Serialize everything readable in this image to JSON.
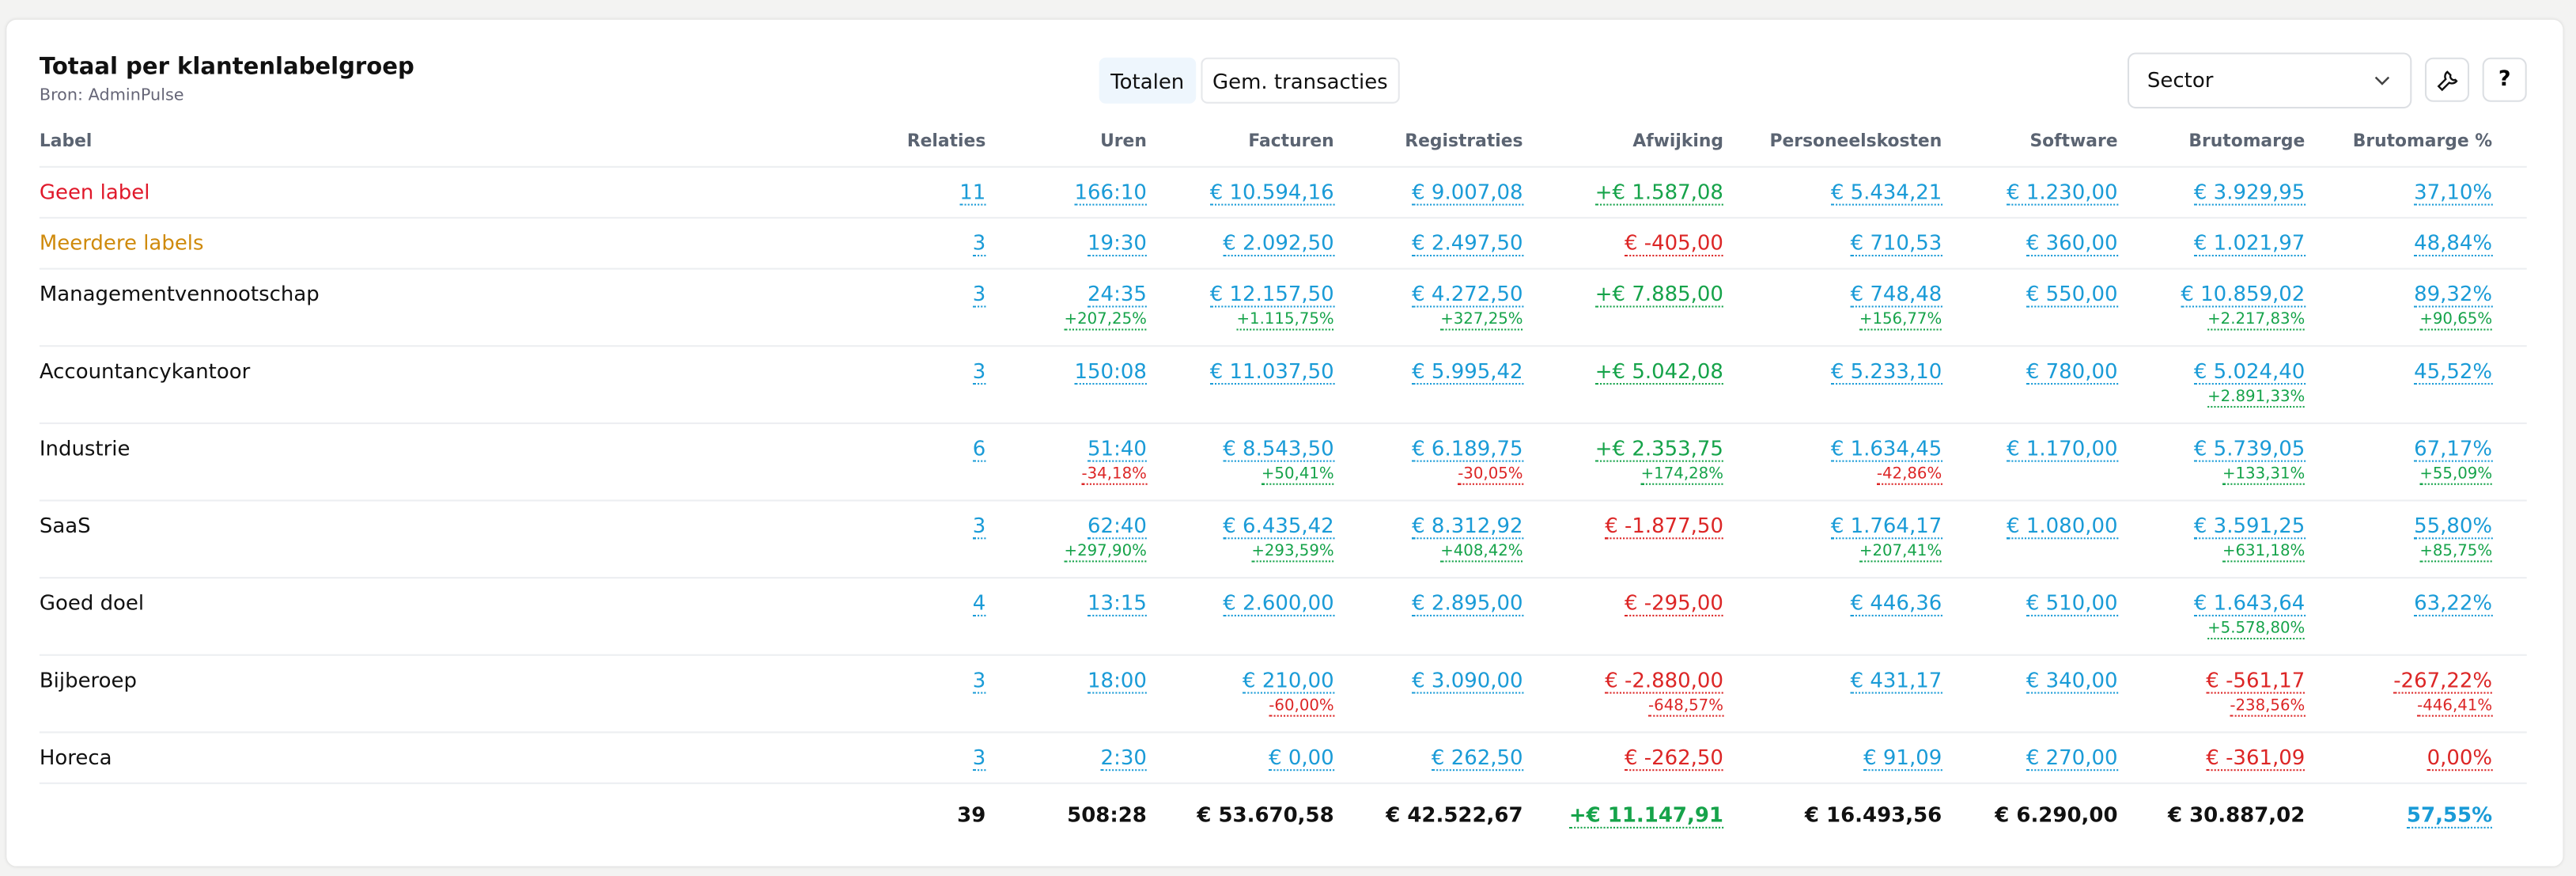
{
  "header": {
    "title": "Totaal per klantenlabelgroep",
    "source": "Bron: AdminPulse"
  },
  "tabs": {
    "items": [
      "Totalen",
      "Gem. transacties"
    ],
    "active": 0
  },
  "select": {
    "value": "Sector"
  },
  "help": "?",
  "table": {
    "columns": [
      "Label",
      "Relaties",
      "Uren",
      "Facturen",
      "Registraties",
      "Afwijking",
      "Personeelskosten",
      "Software",
      "Brutomarge",
      "Brutomarge %"
    ],
    "rows": [
      {
        "label": "Geen label",
        "color": "red",
        "cells": [
          {
            "v": "11"
          },
          {
            "v": "166:10"
          },
          {
            "v": "€ 10.594,16"
          },
          {
            "v": "€ 9.007,08"
          },
          {
            "v": "+€ 1.587,08"
          },
          {
            "v": "€ 5.434,21"
          },
          {
            "v": "€ 1.230,00"
          },
          {
            "v": "€ 3.929,95"
          },
          {
            "v": "37,10%"
          }
        ]
      },
      {
        "label": "Meerdere labels",
        "color": "orange",
        "cells": [
          {
            "v": "3"
          },
          {
            "v": "19:30"
          },
          {
            "v": "€ 2.092,50"
          },
          {
            "v": "€ 2.497,50"
          },
          {
            "v": "€ -405,00"
          },
          {
            "v": "€ 710,53"
          },
          {
            "v": "€ 360,00"
          },
          {
            "v": "€ 1.021,97"
          },
          {
            "v": "48,84%"
          }
        ]
      },
      {
        "label": "Managementvennootschap",
        "cells": [
          {
            "v": "3"
          },
          {
            "v": "24:35",
            "d": "+207,25%"
          },
          {
            "v": "€ 12.157,50",
            "d": "+1.115,75%"
          },
          {
            "v": "€ 4.272,50",
            "d": "+327,25%"
          },
          {
            "v": "+€ 7.885,00"
          },
          {
            "v": "€ 748,48",
            "d": "+156,77%"
          },
          {
            "v": "€ 550,00"
          },
          {
            "v": "€ 10.859,02",
            "d": "+2.217,83%"
          },
          {
            "v": "89,32%",
            "d": "+90,65%"
          }
        ]
      },
      {
        "label": "Accountancykantoor",
        "cells": [
          {
            "v": "3"
          },
          {
            "v": "150:08"
          },
          {
            "v": "€ 11.037,50"
          },
          {
            "v": "€ 5.995,42"
          },
          {
            "v": "+€ 5.042,08"
          },
          {
            "v": "€ 5.233,10"
          },
          {
            "v": "€ 780,00"
          },
          {
            "v": "€ 5.024,40",
            "d": "+2.891,33%"
          },
          {
            "v": "45,52%"
          }
        ]
      },
      {
        "label": "Industrie",
        "cells": [
          {
            "v": "6"
          },
          {
            "v": "51:40",
            "d": "-34,18%"
          },
          {
            "v": "€ 8.543,50",
            "d": "+50,41%"
          },
          {
            "v": "€ 6.189,75",
            "d": "-30,05%"
          },
          {
            "v": "+€ 2.353,75",
            "d": "+174,28%"
          },
          {
            "v": "€ 1.634,45",
            "d": "-42,86%"
          },
          {
            "v": "€ 1.170,00"
          },
          {
            "v": "€ 5.739,05",
            "d": "+133,31%"
          },
          {
            "v": "67,17%",
            "d": "+55,09%"
          }
        ]
      },
      {
        "label": "SaaS",
        "cells": [
          {
            "v": "3"
          },
          {
            "v": "62:40",
            "d": "+297,90%"
          },
          {
            "v": "€ 6.435,42",
            "d": "+293,59%"
          },
          {
            "v": "€ 8.312,92",
            "d": "+408,42%"
          },
          {
            "v": "€ -1.877,50"
          },
          {
            "v": "€ 1.764,17",
            "d": "+207,41%"
          },
          {
            "v": "€ 1.080,00"
          },
          {
            "v": "€ 3.591,25",
            "d": "+631,18%"
          },
          {
            "v": "55,80%",
            "d": "+85,75%"
          }
        ]
      },
      {
        "label": "Goed doel",
        "cells": [
          {
            "v": "4"
          },
          {
            "v": "13:15"
          },
          {
            "v": "€ 2.600,00"
          },
          {
            "v": "€ 2.895,00"
          },
          {
            "v": "€ -295,00"
          },
          {
            "v": "€ 446,36"
          },
          {
            "v": "€ 510,00"
          },
          {
            "v": "€ 1.643,64",
            "d": "+5.578,80%"
          },
          {
            "v": "63,22%"
          }
        ]
      },
      {
        "label": "Bijberoep",
        "cells": [
          {
            "v": "3"
          },
          {
            "v": "18:00"
          },
          {
            "v": "€ 210,00",
            "d": "-60,00%"
          },
          {
            "v": "€ 3.090,00"
          },
          {
            "v": "€ -2.880,00",
            "d": "-648,57%"
          },
          {
            "v": "€ 431,17"
          },
          {
            "v": "€ 340,00"
          },
          {
            "v": "€ -561,17",
            "d": "-238,56%"
          },
          {
            "v": "-267,22%",
            "d": "-446,41%"
          }
        ]
      },
      {
        "label": "Horeca",
        "cells": [
          {
            "v": "3"
          },
          {
            "v": "2:30"
          },
          {
            "v": "€ 0,00"
          },
          {
            "v": "€ 262,50"
          },
          {
            "v": "€ -262,50"
          },
          {
            "v": "€ 91,09"
          },
          {
            "v": "€ 270,00"
          },
          {
            "v": "€ -361,09"
          },
          {
            "v": "0,00%",
            "color": "red"
          }
        ]
      }
    ],
    "totals": {
      "cells": [
        {
          "v": "39"
        },
        {
          "v": "508:28"
        },
        {
          "v": "€ 53.670,58"
        },
        {
          "v": "€ 42.522,67"
        },
        {
          "v": "+€ 11.147,91"
        },
        {
          "v": "€ 16.493,56"
        },
        {
          "v": "€ 6.290,00"
        },
        {
          "v": "€ 30.887,02"
        },
        {
          "v": "57,55%",
          "color": "blue"
        }
      ]
    }
  }
}
